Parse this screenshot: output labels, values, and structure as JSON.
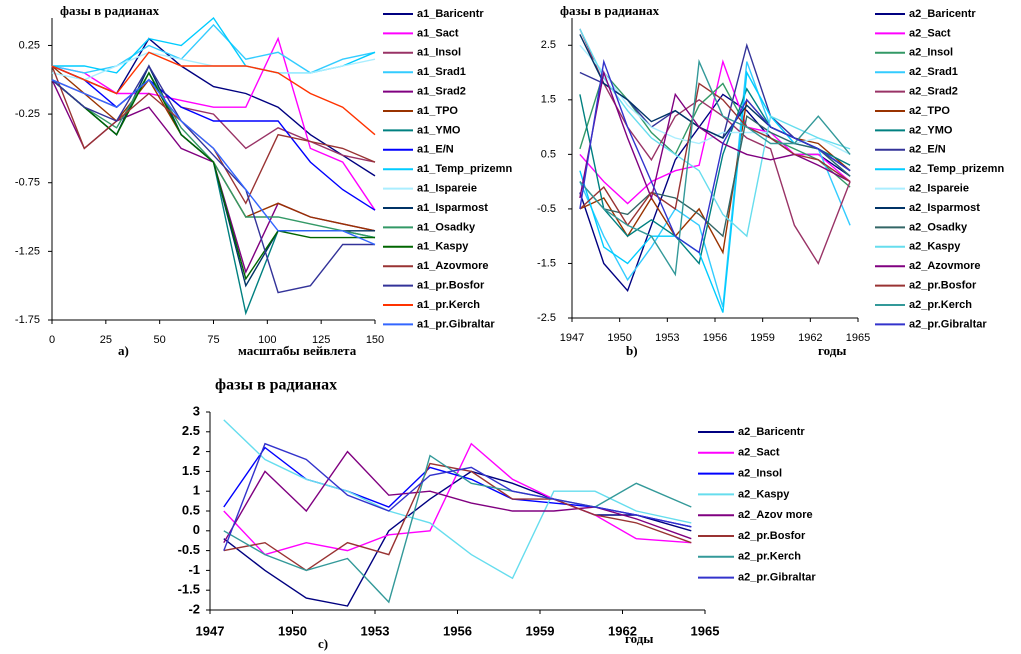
{
  "chart_data": [
    {
      "type": "line",
      "title": "фазы в радианах",
      "x_label": "масштабы вейвлета",
      "panel_label": "a)",
      "xlim": [
        0,
        150
      ],
      "xticks": [
        0,
        25,
        50,
        75,
        100,
        125,
        150
      ],
      "ylim": [
        -1.75,
        0.45
      ],
      "yticks": [
        0.25,
        -0.25,
        -0.75,
        -1.25,
        -1.75
      ],
      "x": [
        0,
        15,
        30,
        45,
        60,
        75,
        90,
        105,
        120,
        135,
        150
      ],
      "series": [
        {
          "name": "a1_Baricentr",
          "color": "#000080",
          "values": [
            0.1,
            0.0,
            -0.1,
            0.3,
            0.1,
            -0.05,
            -0.1,
            -0.2,
            -0.4,
            -0.55,
            -0.7
          ]
        },
        {
          "name": "a1_Sact",
          "color": "#ff00ff",
          "values": [
            0.1,
            0.05,
            -0.1,
            -0.1,
            -0.15,
            -0.2,
            -0.2,
            0.3,
            -0.5,
            -0.6,
            -0.95
          ]
        },
        {
          "name": "a1_Insol",
          "color": "#993366",
          "values": [
            0,
            -0.1,
            -0.2,
            0.0,
            -0.2,
            -0.25,
            -0.5,
            -0.35,
            -0.45,
            -0.55,
            -0.6
          ]
        },
        {
          "name": "a1_Srad1",
          "color": "#33ccff",
          "values": [
            0.1,
            0.05,
            0.1,
            0.25,
            0.15,
            0.4,
            0.15,
            0.2,
            0.05,
            0.15,
            0.2
          ]
        },
        {
          "name": "a1_Srad2",
          "color": "#800080",
          "values": [
            0.0,
            -0.5,
            -0.3,
            -0.2,
            -0.5,
            -0.6,
            -1.4,
            -0.9,
            -1.0,
            -1.05,
            -1.1
          ]
        },
        {
          "name": "a1_TPO",
          "color": "#993300",
          "values": [
            0.1,
            -0.1,
            -0.3,
            0.0,
            -0.4,
            -0.6,
            -1.0,
            -0.9,
            -1.0,
            -1.05,
            -1.1
          ]
        },
        {
          "name": "a1_YMO",
          "color": "#008080",
          "values": [
            0,
            -0.2,
            -0.4,
            0.1,
            -0.4,
            -0.6,
            -1.7,
            -1.1,
            -1.1,
            -1.1,
            -1.15
          ]
        },
        {
          "name": "a1_E/N",
          "color": "#0000ff",
          "values": [
            0.1,
            0.0,
            -0.2,
            0.0,
            -0.2,
            -0.3,
            -0.3,
            -0.3,
            -0.6,
            -0.8,
            -0.95
          ]
        },
        {
          "name": "a1_Temp_prizemn",
          "color": "#00ccff",
          "values": [
            0.1,
            0.1,
            0.05,
            0.3,
            0.25,
            0.45,
            0.1,
            0.05,
            0.05,
            0.1,
            0.2
          ]
        },
        {
          "name": "a1_Ispareie",
          "color": "#aaeeff",
          "values": [
            0.05,
            0.0,
            0.1,
            0.2,
            0.15,
            0.1,
            0.1,
            0.05,
            0.05,
            0.1,
            0.15
          ]
        },
        {
          "name": "a1_Isparmost",
          "color": "#003366",
          "values": [
            0.0,
            -0.2,
            -0.4,
            0.1,
            -0.4,
            -0.6,
            -1.5,
            -1.1,
            -1.1,
            -1.1,
            -1.1
          ]
        },
        {
          "name": "a1_Osadky",
          "color": "#339966",
          "values": [
            0,
            -0.2,
            -0.35,
            0.05,
            -0.35,
            -0.6,
            -1.0,
            -1.0,
            -1.05,
            -1.1,
            -1.15
          ]
        },
        {
          "name": "a1_Kaspy",
          "color": "#006600",
          "values": [
            0,
            -0.2,
            -0.4,
            0.05,
            -0.4,
            -0.6,
            -1.45,
            -1.1,
            -1.15,
            -1.15,
            -1.15
          ]
        },
        {
          "name": "a1_Azovmore",
          "color": "#993333",
          "values": [
            0.1,
            -0.5,
            -0.3,
            -0.1,
            -0.3,
            -0.5,
            -0.9,
            -0.4,
            -0.45,
            -0.5,
            -0.6
          ]
        },
        {
          "name": "a1_pr.Bosfor",
          "color": "#333399",
          "values": [
            0,
            -0.2,
            -0.3,
            0.1,
            -0.3,
            -0.55,
            -0.8,
            -1.55,
            -1.5,
            -1.2,
            -1.2
          ]
        },
        {
          "name": "a1_pr.Kerch",
          "color": "#ff3300",
          "values": [
            0.1,
            0.0,
            -0.1,
            0.2,
            0.1,
            0.1,
            0.1,
            0.05,
            -0.1,
            -0.2,
            -0.4
          ]
        },
        {
          "name": "a1_pr.Gibraltar",
          "color": "#3366ff",
          "values": [
            0,
            -0.1,
            -0.2,
            0.0,
            -0.3,
            -0.5,
            -0.8,
            -1.1,
            -1.1,
            -1.1,
            -1.2
          ]
        }
      ]
    },
    {
      "type": "line",
      "title": "фазы в радианах",
      "x_label": "годы",
      "panel_label": "b)",
      "xlim": [
        1947,
        1965
      ],
      "xticks": [
        1947,
        1950,
        1953,
        1956,
        1959,
        1962,
        1965
      ],
      "ylim": [
        -2.5,
        3
      ],
      "yticks": [
        2.5,
        1.5,
        0.5,
        -0.5,
        -1.5,
        -2.5
      ],
      "x": [
        1947.5,
        1949,
        1950.5,
        1952,
        1953.5,
        1955,
        1956.5,
        1958,
        1959.5,
        1961,
        1962.5,
        1964.5
      ],
      "series": [
        {
          "name": "a2_Baricentr",
          "color": "#000080",
          "values": [
            -0.2,
            -1.5,
            -2.0,
            -0.8,
            0.4,
            1.0,
            1.6,
            1.3,
            0.8,
            0.5,
            0.5,
            0.1
          ]
        },
        {
          "name": "a2_Sact",
          "color": "#ff00ff",
          "values": [
            0.5,
            0.0,
            -0.4,
            0.0,
            0.2,
            0.3,
            2.2,
            1.0,
            0.9,
            0.5,
            0.5,
            0.0
          ]
        },
        {
          "name": "a2_Insol",
          "color": "#339966",
          "values": [
            0.6,
            2.0,
            1.5,
            0.9,
            0.5,
            1.4,
            1.8,
            1.0,
            0.8,
            0.6,
            0.4,
            -0.1
          ]
        },
        {
          "name": "a2_Srad1",
          "color": "#33ccff",
          "values": [
            0,
            -1,
            -1.8,
            -1.2,
            -0.5,
            -0.8,
            -2.3,
            2.2,
            1.0,
            0.8,
            0.6,
            -0.8
          ]
        },
        {
          "name": "a2_Srad2",
          "color": "#993366",
          "values": [
            2.8,
            1.8,
            1.0,
            0.4,
            1.2,
            1.5,
            1.2,
            0.8,
            0.6,
            -0.8,
            -1.5,
            0.0
          ]
        },
        {
          "name": "a2_TPO",
          "color": "#993300",
          "values": [
            -0.5,
            -0.3,
            -1.0,
            -0.3,
            -1.0,
            -0.5,
            -1.3,
            1.5,
            1.0,
            0.8,
            0.7,
            0.2
          ]
        },
        {
          "name": "a2_YMO",
          "color": "#008080",
          "values": [
            1.6,
            -0.5,
            -1.0,
            -0.7,
            -1.0,
            -1.5,
            0.5,
            1.7,
            1.0,
            0.8,
            0.6,
            0.3
          ]
        },
        {
          "name": "a2_E/N",
          "color": "#333399",
          "values": [
            2.0,
            1.8,
            1.5,
            1.0,
            1.3,
            1.0,
            0.8,
            2.5,
            1.2,
            0.8,
            0.6,
            0.2
          ]
        },
        {
          "name": "a2_Temp_prizemn",
          "color": "#00ccff",
          "values": [
            0.2,
            -1.2,
            -1.5,
            -1.0,
            -1.0,
            -1.3,
            -2.4,
            2.0,
            1.2,
            0.7,
            0.6,
            0.1
          ]
        },
        {
          "name": "a2_Ispareie",
          "color": "#aaeeff",
          "values": [
            2.5,
            2.0,
            1.4,
            1.0,
            0.8,
            0.7,
            0.9,
            0.9,
            0.9,
            0.7,
            0.8,
            0.5
          ]
        },
        {
          "name": "a2_Isparmost",
          "color": "#003366",
          "values": [
            2.7,
            1.8,
            1.5,
            1.1,
            1.3,
            1.0,
            0.8,
            1.4,
            1.0,
            0.8,
            0.6,
            0.2
          ]
        },
        {
          "name": "a2_Osadky",
          "color": "#336666",
          "values": [
            0.0,
            -0.5,
            -0.6,
            -0.2,
            -0.3,
            -0.6,
            -1.0,
            1.2,
            0.9,
            0.7,
            0.6,
            0.1
          ]
        },
        {
          "name": "a2_Kaspy",
          "color": "#66ddee",
          "values": [
            2.8,
            1.9,
            1.3,
            0.8,
            0.5,
            0.2,
            -0.6,
            -1.0,
            1.2,
            1.0,
            0.8,
            0.6
          ]
        },
        {
          "name": "a2_Azovmore",
          "color": "#800080",
          "values": [
            -0.3,
            2.0,
            0.8,
            -0.3,
            1.6,
            1.0,
            0.7,
            0.5,
            0.4,
            0.5,
            0.3,
            0.0
          ]
        },
        {
          "name": "a2_pr.Bosfor",
          "color": "#993333",
          "values": [
            -0.5,
            -0.1,
            -0.8,
            -0.2,
            -0.5,
            1.8,
            1.5,
            1.0,
            0.8,
            0.5,
            0.4,
            0.0
          ]
        },
        {
          "name": "a2_pr.Kerch",
          "color": "#339999",
          "values": [
            0.0,
            -0.5,
            -0.8,
            -1.0,
            -1.7,
            2.2,
            1.2,
            1.0,
            0.7,
            0.7,
            1.2,
            0.5
          ]
        },
        {
          "name": "a2_pr.Gibraltar",
          "color": "#3333cc",
          "values": [
            -0.5,
            2.2,
            1.0,
            0.0,
            -1.0,
            -1.3,
            0.7,
            1.5,
            1.0,
            0.8,
            0.6,
            0.2
          ]
        }
      ]
    },
    {
      "type": "line",
      "title": "фазы в радианах",
      "x_label": "годы",
      "panel_label": "c)",
      "xlim": [
        1947,
        1965
      ],
      "xticks": [
        1947,
        1950,
        1953,
        1956,
        1959,
        1962,
        1965
      ],
      "ylim": [
        -2,
        3
      ],
      "yticks": [
        -2,
        -1.5,
        -1,
        -0.5,
        0,
        0.5,
        1,
        1.5,
        2,
        2.5,
        3
      ],
      "x": [
        1947.5,
        1949,
        1950.5,
        1952,
        1953.5,
        1955,
        1956.5,
        1958,
        1959.5,
        1961,
        1962.5,
        1964.5
      ],
      "series": [
        {
          "name": "a2_Baricentr",
          "color": "#000080",
          "values": [
            -0.2,
            -1.0,
            -1.7,
            -1.9,
            0.0,
            0.8,
            1.5,
            1.2,
            0.8,
            0.4,
            0.4,
            0.0
          ]
        },
        {
          "name": "a2_Sact",
          "color": "#ff00ff",
          "values": [
            0.5,
            -0.6,
            -0.3,
            -0.5,
            -0.1,
            0.0,
            2.2,
            1.3,
            0.8,
            0.4,
            -0.2,
            -0.3
          ]
        },
        {
          "name": "a2_Insol",
          "color": "#0000ff",
          "values": [
            0.6,
            2.1,
            1.3,
            1.0,
            0.6,
            1.6,
            1.3,
            0.8,
            0.7,
            0.6,
            0.4,
            0.1
          ]
        },
        {
          "name": "a2_Kaspy",
          "color": "#66ddee",
          "values": [
            2.8,
            1.8,
            1.3,
            1.0,
            0.5,
            0.2,
            -0.6,
            -1.2,
            1.0,
            1.0,
            0.5,
            0.2
          ]
        },
        {
          "name": "a2_Azov more",
          "color": "#800080",
          "values": [
            -0.3,
            1.5,
            0.5,
            2.0,
            0.9,
            1.0,
            0.7,
            0.5,
            0.5,
            0.6,
            0.3,
            -0.2
          ]
        },
        {
          "name": "a2_pr.Bosfor",
          "color": "#993333",
          "values": [
            -0.5,
            -0.3,
            -1.0,
            -0.3,
            -0.6,
            1.7,
            1.5,
            0.8,
            0.8,
            0.4,
            0.2,
            -0.3
          ]
        },
        {
          "name": "a2_pr.Kerch",
          "color": "#339999",
          "values": [
            0.0,
            -0.6,
            -1.0,
            -0.7,
            -1.8,
            1.9,
            1.2,
            1.0,
            0.8,
            0.6,
            1.2,
            0.6
          ]
        },
        {
          "name": "a2_pr.Gibraltar",
          "color": "#3333cc",
          "values": [
            -0.5,
            2.2,
            1.8,
            0.9,
            0.5,
            1.4,
            1.6,
            1.0,
            0.8,
            0.6,
            0.4,
            0.1
          ]
        }
      ]
    }
  ]
}
